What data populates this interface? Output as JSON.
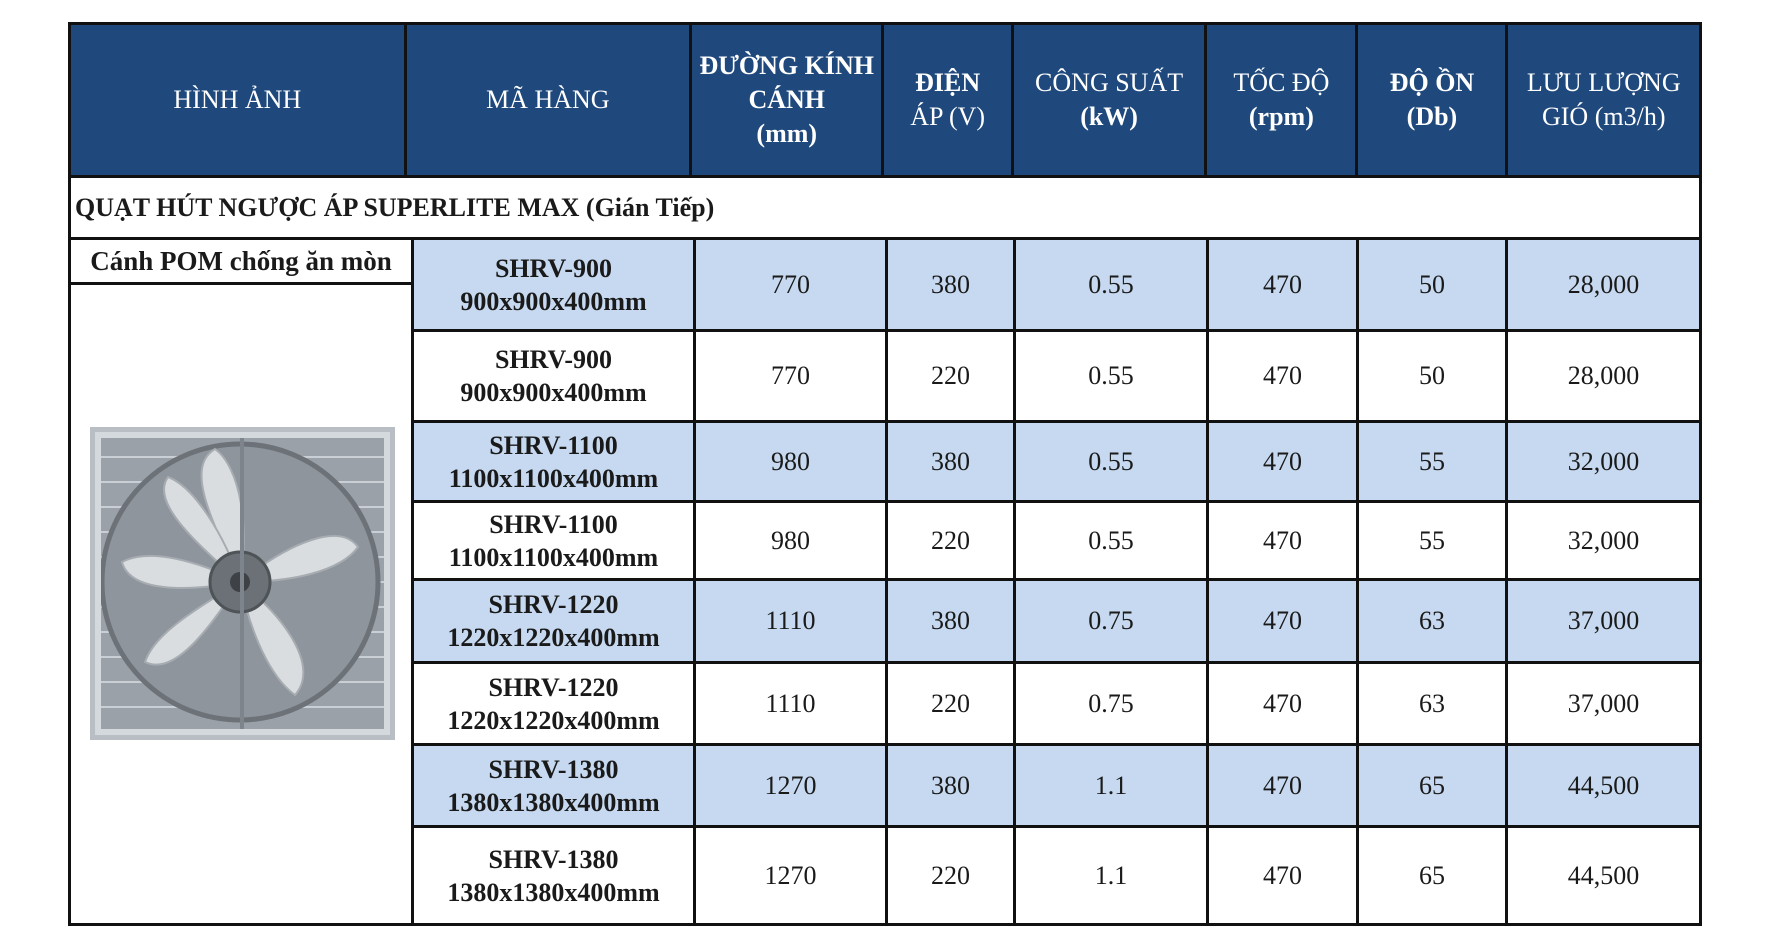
{
  "header": {
    "image": "HÌNH ẢNH",
    "code": "MÃ HÀNG",
    "diameter": [
      "ĐƯỜNG KÍNH",
      "CÁNH",
      "(mm)"
    ],
    "voltage": [
      "ĐIỆN",
      "ÁP (V)"
    ],
    "power": [
      "CÔNG SUẤT",
      "(kW)"
    ],
    "speed": [
      "TỐC ĐỘ",
      "(rpm)"
    ],
    "noise": [
      "ĐỘ ỒN",
      "(Db)"
    ],
    "airflow": [
      "LƯU LƯỢNG",
      "GIÓ (m3/h)"
    ]
  },
  "section_title": "QUẠT HÚT NGƯỢC ÁP SUPERLITE MAX (Gián Tiếp)",
  "blade_note": "Cánh POM chống ăn mòn",
  "rows": [
    {
      "model": "SHRV-900",
      "size": "900x900x400mm",
      "diameter": "770",
      "voltage": "380",
      "power": "0.55",
      "speed": "470",
      "noise": "50",
      "airflow": "28,000"
    },
    {
      "model": "SHRV-900",
      "size": "900x900x400mm",
      "diameter": "770",
      "voltage": "220",
      "power": "0.55",
      "speed": "470",
      "noise": "50",
      "airflow": "28,000"
    },
    {
      "model": "SHRV-1100",
      "size": "1100x1100x400mm",
      "diameter": "980",
      "voltage": "380",
      "power": "0.55",
      "speed": "470",
      "noise": "55",
      "airflow": "32,000"
    },
    {
      "model": "SHRV-1100",
      "size": "1100x1100x400mm",
      "diameter": "980",
      "voltage": "220",
      "power": "0.55",
      "speed": "470",
      "noise": "55",
      "airflow": "32,000"
    },
    {
      "model": "SHRV-1220",
      "size": "1220x1220x400mm",
      "diameter": "1110",
      "voltage": "380",
      "power": "0.75",
      "speed": "470",
      "noise": "63",
      "airflow": "37,000"
    },
    {
      "model": "SHRV-1220",
      "size": "1220x1220x400mm",
      "diameter": "1110",
      "voltage": "220",
      "power": "0.75",
      "speed": "470",
      "noise": "63",
      "airflow": "37,000"
    },
    {
      "model": "SHRV-1380",
      "size": "1380x1380x400mm",
      "diameter": "1270",
      "voltage": "380",
      "power": "1.1",
      "speed": "470",
      "noise": "65",
      "airflow": "44,500"
    },
    {
      "model": "SHRV-1380",
      "size": "1380x1380x400mm",
      "diameter": "1270",
      "voltage": "220",
      "power": "1.1",
      "speed": "470",
      "noise": "65",
      "airflow": "44,500"
    }
  ]
}
